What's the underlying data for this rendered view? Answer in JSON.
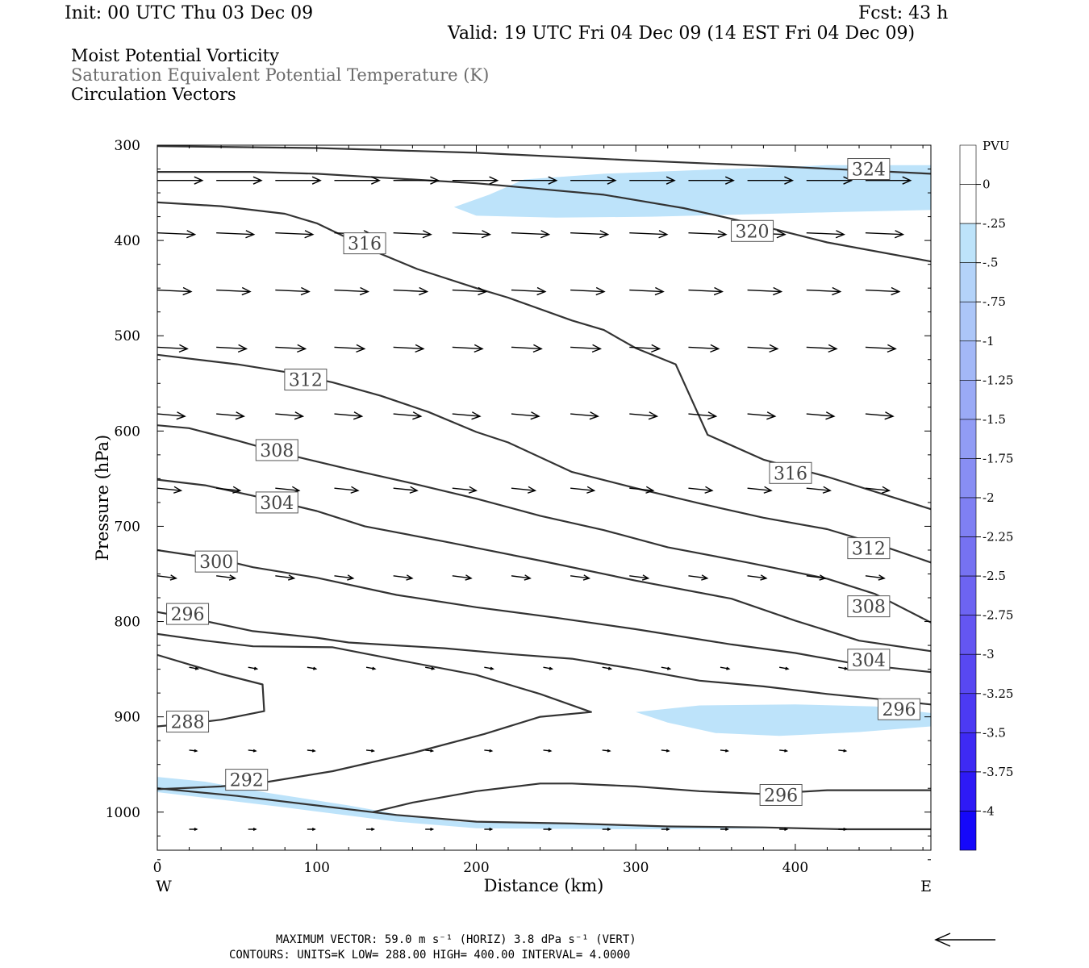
{
  "header": {
    "init": "Init: 00 UTC Thu 03 Dec 09",
    "fcst": "Fcst:   43 h",
    "valid": "Valid: 19 UTC Fri 04 Dec 09 (14 EST Fri 04 Dec 09)",
    "title_lines": [
      "Moist Potential Vorticity",
      "Saturation Equivalent Potential Temperature (K)",
      "Circulation Vectors"
    ]
  },
  "footer": {
    "line1": "MAXIMUM VECTOR:  59.0 m s⁻¹ (HORIZ)        3.8 dPa s⁻¹ (VERT)",
    "line2": "CONTOURS:  UNITS=K  LOW=   288.00       HIGH=   400.00       INTERVAL=     4.0000"
  },
  "colors": {
    "contour": "#333333",
    "pv_fill": "#bde3fa",
    "vector": "#000000"
  },
  "chart_data": {
    "type": "cross-section",
    "xlabel": "Distance (km)",
    "ylabel": "Pressure (hPa)",
    "xlim": [
      0,
      485
    ],
    "ylim": [
      1040,
      300
    ],
    "x_ticks": [
      0,
      100,
      200,
      300,
      400
    ],
    "y_ticks": [
      300,
      400,
      500,
      600,
      700,
      800,
      900,
      1000
    ],
    "x_end_labels": {
      "left": "W",
      "right": "E"
    },
    "colorbar": {
      "unit": "PVU",
      "labels": [
        "0",
        "-.25",
        "-.5",
        "-.75",
        "-1",
        "-1.25",
        "-1.5",
        "-1.75",
        "-2",
        "-2.25",
        "-2.5",
        "-2.75",
        "-3",
        "-3.25",
        "-3.5",
        "-3.75",
        "-4"
      ],
      "colors": [
        "#ffffff",
        "#ffffff",
        "#bde3fa",
        "#b4d3f9",
        "#acc6f8",
        "#a3b8f7",
        "#9aaaf6",
        "#919cf5",
        "#888ef4",
        "#7f80f3",
        "#7672f2",
        "#6d64f2",
        "#6456f2",
        "#5848f2",
        "#4c3af3",
        "#3e2af4",
        "#2e1af6",
        "#1508fa"
      ]
    },
    "pv_regions": [
      [
        [
          186,
          365
        ],
        [
          208,
          352
        ],
        [
          230,
          336
        ],
        [
          280,
          330
        ],
        [
          340,
          326
        ],
        [
          390,
          323
        ],
        [
          420,
          321
        ],
        [
          485,
          321
        ],
        [
          485,
          368
        ],
        [
          430,
          370
        ],
        [
          360,
          373
        ],
        [
          310,
          375
        ],
        [
          250,
          376
        ],
        [
          200,
          374
        ]
      ],
      [
        [
          300,
          895
        ],
        [
          340,
          888
        ],
        [
          400,
          887
        ],
        [
          450,
          889
        ],
        [
          485,
          896
        ],
        [
          485,
          910
        ],
        [
          440,
          916
        ],
        [
          390,
          920
        ],
        [
          350,
          917
        ],
        [
          320,
          906
        ]
      ],
      [
        [
          0,
          963
        ],
        [
          30,
          968
        ],
        [
          70,
          980
        ],
        [
          120,
          993
        ],
        [
          160,
          1005
        ],
        [
          190,
          1010
        ],
        [
          250,
          1012
        ],
        [
          300,
          1015
        ],
        [
          360,
          1016
        ],
        [
          400,
          1017
        ],
        [
          300,
          1018
        ],
        [
          200,
          1017
        ],
        [
          150,
          1010
        ],
        [
          80,
          995
        ],
        [
          30,
          985
        ],
        [
          0,
          979
        ]
      ]
    ],
    "contours": [
      {
        "label": "324",
        "points": [
          [
            0,
            301
          ],
          [
            100,
            303
          ],
          [
            200,
            308
          ],
          [
            300,
            316
          ],
          [
            400,
            323
          ],
          [
            485,
            330
          ]
        ]
      },
      {
        "label": "320",
        "points": [
          [
            0,
            328
          ],
          [
            60,
            328
          ],
          [
            100,
            330
          ],
          [
            150,
            335
          ],
          [
            200,
            340
          ],
          [
            240,
            346
          ],
          [
            280,
            352
          ],
          [
            330,
            366
          ],
          [
            370,
            381
          ],
          [
            420,
            402
          ],
          [
            485,
            422
          ]
        ]
      },
      {
        "label": "316",
        "points": [
          [
            0,
            360
          ],
          [
            40,
            364
          ],
          [
            80,
            372
          ],
          [
            100,
            382
          ],
          [
            120,
            398
          ],
          [
            140,
            414
          ],
          [
            163,
            430
          ],
          [
            200,
            450
          ],
          [
            220,
            460
          ],
          [
            260,
            484
          ],
          [
            280,
            494
          ],
          [
            300,
            513
          ],
          [
            325,
            530
          ],
          [
            335,
            567
          ],
          [
            345,
            604
          ],
          [
            380,
            630
          ],
          [
            420,
            648
          ],
          [
            485,
            682
          ]
        ]
      },
      {
        "label": "312",
        "points": [
          [
            0,
            520
          ],
          [
            50,
            530
          ],
          [
            80,
            538
          ],
          [
            110,
            549
          ],
          [
            140,
            563
          ],
          [
            170,
            580
          ],
          [
            200,
            601
          ],
          [
            220,
            612
          ],
          [
            260,
            643
          ],
          [
            300,
            660
          ],
          [
            340,
            676
          ],
          [
            380,
            691
          ],
          [
            420,
            703
          ],
          [
            450,
            718
          ],
          [
            485,
            738
          ]
        ]
      },
      {
        "label": "308",
        "points": [
          [
            0,
            594
          ],
          [
            20,
            597
          ],
          [
            50,
            610
          ],
          [
            80,
            624
          ],
          [
            120,
            640
          ],
          [
            160,
            655
          ],
          [
            200,
            671
          ],
          [
            240,
            689
          ],
          [
            280,
            704
          ],
          [
            320,
            722
          ],
          [
            370,
            738
          ],
          [
            420,
            755
          ],
          [
            450,
            771
          ],
          [
            485,
            801
          ]
        ]
      },
      {
        "label": "304",
        "points": [
          [
            0,
            651
          ],
          [
            30,
            657
          ],
          [
            60,
            668
          ],
          [
            100,
            684
          ],
          [
            130,
            700
          ],
          [
            180,
            716
          ],
          [
            240,
            736
          ],
          [
            300,
            757
          ],
          [
            360,
            776
          ],
          [
            400,
            799
          ],
          [
            440,
            820
          ],
          [
            485,
            831
          ]
        ]
      },
      {
        "label": "300",
        "points": [
          [
            0,
            725
          ],
          [
            40,
            735
          ],
          [
            60,
            743
          ],
          [
            100,
            754
          ],
          [
            150,
            772
          ],
          [
            200,
            785
          ],
          [
            250,
            796
          ],
          [
            300,
            808
          ],
          [
            360,
            824
          ],
          [
            400,
            833
          ],
          [
            440,
            845
          ],
          [
            485,
            853
          ]
        ]
      },
      {
        "label": "296",
        "points": [
          [
            0,
            790
          ],
          [
            20,
            796
          ],
          [
            60,
            810
          ],
          [
            100,
            817
          ],
          [
            120,
            822
          ],
          [
            150,
            825
          ],
          [
            180,
            828
          ],
          [
            220,
            834
          ],
          [
            260,
            839
          ],
          [
            300,
            850
          ],
          [
            340,
            862
          ],
          [
            380,
            868
          ],
          [
            420,
            876
          ],
          [
            450,
            881
          ],
          [
            485,
            887
          ]
        ]
      },
      {
        "label": "",
        "points": [
          [
            0,
            813
          ],
          [
            30,
            820
          ],
          [
            60,
            826
          ],
          [
            110,
            827
          ],
          [
            150,
            840
          ],
          [
            200,
            856
          ],
          [
            240,
            876
          ],
          [
            272,
            895
          ],
          [
            240,
            900
          ],
          [
            205,
            918
          ],
          [
            160,
            938
          ],
          [
            110,
            957
          ],
          [
            70,
            968
          ],
          [
            40,
            973
          ],
          [
            0,
            976
          ]
        ]
      },
      {
        "label": "288",
        "points": [
          [
            0,
            835
          ],
          [
            20,
            845
          ],
          [
            40,
            855
          ],
          [
            66,
            866
          ],
          [
            67,
            894
          ],
          [
            40,
            903
          ],
          [
            20,
            907
          ],
          [
            0,
            910
          ]
        ]
      },
      {
        "label": "296",
        "points": [
          [
            135,
            1000
          ],
          [
            160,
            990
          ],
          [
            200,
            978
          ],
          [
            240,
            970
          ],
          [
            260,
            970
          ],
          [
            300,
            973
          ],
          [
            340,
            978
          ],
          [
            380,
            981
          ],
          [
            420,
            977
          ],
          [
            485,
            977
          ]
        ]
      },
      {
        "label": "",
        "points": [
          [
            0,
            975
          ],
          [
            50,
            983
          ],
          [
            100,
            993
          ],
          [
            150,
            1003
          ],
          [
            200,
            1010
          ],
          [
            260,
            1012
          ],
          [
            320,
            1015
          ],
          [
            380,
            1016
          ],
          [
            430,
            1018
          ],
          [
            485,
            1018
          ]
        ]
      }
    ],
    "contour_labels": [
      {
        "text": "324",
        "x": 446,
        "p": 325
      },
      {
        "text": "320",
        "x": 373,
        "p": 390
      },
      {
        "text": "316",
        "x": 130,
        "p": 403
      },
      {
        "text": "312",
        "x": 93,
        "p": 546
      },
      {
        "text": "316",
        "x": 397,
        "p": 644
      },
      {
        "text": "308",
        "x": 75,
        "p": 620
      },
      {
        "text": "304",
        "x": 75,
        "p": 675
      },
      {
        "text": "312",
        "x": 446,
        "p": 723
      },
      {
        "text": "300",
        "x": 37,
        "p": 737
      },
      {
        "text": "308",
        "x": 446,
        "p": 784
      },
      {
        "text": "296",
        "x": 19,
        "p": 792
      },
      {
        "text": "304",
        "x": 446,
        "p": 840
      },
      {
        "text": "296",
        "x": 465,
        "p": 892
      },
      {
        "text": "288",
        "x": 19,
        "p": 905
      },
      {
        "text": "292",
        "x": 56,
        "p": 966
      },
      {
        "text": "296",
        "x": 391,
        "p": 982
      }
    ],
    "vector_rows": [
      {
        "p": 337,
        "x0": 0,
        "dx": 37,
        "u": 36,
        "w": 0,
        "n": 13
      },
      {
        "p": 392,
        "x0": 0,
        "dx": 37,
        "u": 30,
        "w": -2,
        "n": 13
      },
      {
        "p": 452,
        "x0": 0,
        "dx": 37,
        "u": 27,
        "w": -2,
        "n": 13
      },
      {
        "p": 512,
        "x0": 0,
        "dx": 37,
        "u": 24,
        "w": -2,
        "n": 13
      },
      {
        "p": 582,
        "x0": 0,
        "dx": 37,
        "u": 22,
        "w": -3,
        "n": 13
      },
      {
        "p": 660,
        "x0": 0,
        "dx": 37,
        "u": 19,
        "w": -3,
        "n": 13
      },
      {
        "p": 752,
        "x0": 0,
        "dx": 37,
        "u": 15,
        "w": -3,
        "n": 13
      },
      {
        "p": 848,
        "x0": 20,
        "dx": 37,
        "u": 7,
        "w": -2,
        "n": 12
      },
      {
        "p": 935,
        "x0": 20,
        "dx": 37,
        "u": 6,
        "w": -1,
        "n": 12
      },
      {
        "p": 1018,
        "x0": 20,
        "dx": 37,
        "u": 6,
        "w": 0,
        "n": 12
      }
    ],
    "reference_vector": {
      "length": 59.0,
      "unit": "m s-1"
    }
  }
}
